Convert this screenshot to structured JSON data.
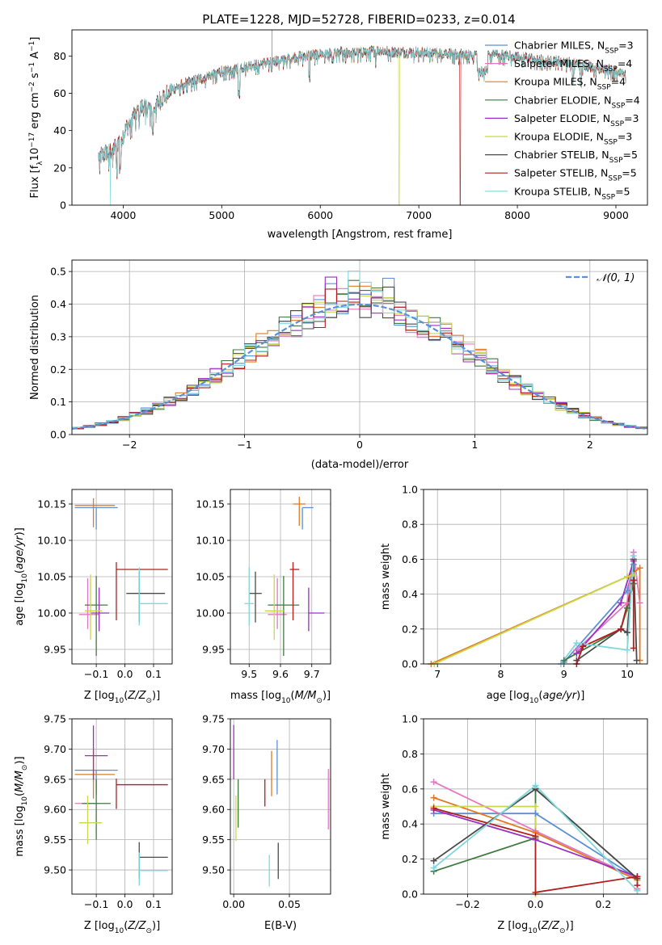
{
  "figure_title": "PLATE=1228, MJD=52728, FIBERID=0233, z=0.014",
  "colors": {
    "Chabrier MILES": "#5b8fd6",
    "Salpeter MILES": "#e377c2",
    "Kroupa MILES": "#e07b22",
    "Chabrier ELODIE": "#3e7a3e",
    "Salpeter ELODIE": "#9b30c0",
    "Kroupa ELODIE": "#c8d84a",
    "Chabrier STELIB": "#4a4a4a",
    "Salpeter STELIB": "#b21e1e",
    "Kroupa STELIB": "#7fd8dc"
  },
  "legend_labels": {
    "Chabrier MILES": "Chabrier MILES, N_SSP=3",
    "Salpeter MILES": "Salpeter MILES, N_SSP=4",
    "Kroupa MILES": "Kroupa MILES, N_SSP=4",
    "Chabrier ELODIE": "Chabrier ELODIE, N_SSP=4",
    "Salpeter ELODIE": "Salpeter ELODIE, N_SSP=3",
    "Kroupa ELODIE": "Kroupa ELODIE, N_SSP=3",
    "Chabrier STELIB": "Chabrier STELIB, N_SSP=5",
    "Salpeter STELIB": "Salpeter STELIB, N_SSP=5",
    "Kroupa STELIB": "Kroupa STELIB, N_SSP=5"
  },
  "chart_data": [
    {
      "id": "spectrum",
      "type": "line",
      "title": "PLATE=1228, MJD=52728, FIBERID=0233, z=0.014",
      "xlabel": "wavelength [Angstrom, rest frame]",
      "ylabel": "Flux [f_λ 10^-17 erg cm^-2 s^-1 A^-1]",
      "xlim": [
        3480,
        9320
      ],
      "ylim": [
        0,
        94
      ],
      "xticks": [
        4000,
        5000,
        6000,
        7000,
        8000,
        9000
      ],
      "yticks": [
        0,
        20,
        40,
        60,
        80
      ],
      "legend": "top-right",
      "grid": false,
      "continuum": {
        "x": [
          3750,
          3800,
          3900,
          4000,
          4100,
          4200,
          4300,
          4400,
          4500,
          4600,
          4800,
          5000,
          5200,
          5400,
          5600,
          5800,
          6000,
          6200,
          6400,
          6600,
          6800,
          7000,
          7200,
          7400,
          7600,
          7800,
          8000,
          8200,
          8400,
          8600,
          8800,
          9000,
          9100
        ],
        "y": [
          26,
          27,
          30,
          38,
          48,
          53,
          52,
          58,
          62,
          65,
          68,
          72,
          74,
          76,
          78,
          80,
          81,
          82,
          82,
          83,
          82,
          82,
          82,
          81,
          81,
          81,
          80,
          78,
          78,
          76,
          74,
          72,
          71
        ]
      },
      "drops": [
        {
          "series": "Kroupa ELODIE",
          "x": 6800
        },
        {
          "series": "Salpeter STELIB",
          "x": 7420
        },
        {
          "series": "Kroupa STELIB",
          "x": 3870
        }
      ]
    },
    {
      "id": "residuals",
      "type": "step-histogram",
      "xlabel": "(data-model)/error",
      "ylabel": "Normed distribution",
      "xlim": [
        -2.5,
        2.5
      ],
      "ylim": [
        0,
        0.535
      ],
      "xticks": [
        -2,
        -1,
        0,
        1,
        2
      ],
      "yticks": [
        0.0,
        0.1,
        0.2,
        0.3,
        0.4,
        0.5
      ],
      "grid": true,
      "legend": "top-right",
      "normal_label": "𝒩(0, 1)",
      "normal_color": "#5b8fd6",
      "bin_width": 0.1
    },
    {
      "id": "age_vs_Z",
      "type": "errorbar",
      "xlabel": "Z [log10(Z/Z⊙)]",
      "ylabel": "age [log10(age/yr)]",
      "xlim": [
        -0.185,
        0.165
      ],
      "ylim": [
        9.93,
        10.17
      ],
      "xticks": [
        -0.1,
        0.0,
        0.1
      ],
      "yticks": [
        9.95,
        10.0,
        10.05,
        10.1,
        10.15
      ],
      "grid": true,
      "points": [
        {
          "series": "Chabrier MILES",
          "x": -0.1,
          "xerr": [
            0.075,
            0.075
          ],
          "y": 10.145,
          "yerr": [
            0.03,
            0.0
          ]
        },
        {
          "series": "Kroupa MILES",
          "x": -0.11,
          "xerr": [
            0.065,
            0.075
          ],
          "y": 10.148,
          "yerr": [
            0.03,
            0.01
          ]
        },
        {
          "series": "Salpeter MILES",
          "x": -0.13,
          "xerr": [
            0.03,
            0.04
          ],
          "y": 9.998,
          "yerr": [
            0.02,
            0.05
          ]
        },
        {
          "series": "Chabrier ELODIE",
          "x": -0.1,
          "xerr": [
            0.04,
            0.04
          ],
          "y": 10.011,
          "yerr": [
            0.07,
            0.04
          ]
        },
        {
          "series": "Salpeter ELODIE",
          "x": -0.09,
          "xerr": [
            0.03,
            0.035
          ],
          "y": 10.0,
          "yerr": [
            0.025,
            0.035
          ]
        },
        {
          "series": "Kroupa ELODIE",
          "x": -0.12,
          "xerr": [
            0.02,
            0.04
          ],
          "y": 10.003,
          "yerr": [
            0.04,
            0.05
          ]
        },
        {
          "series": "Chabrier STELIB",
          "x": 0.05,
          "xerr": [
            0.045,
            0.09
          ],
          "y": 10.027,
          "yerr": [
            0.04,
            0.03
          ]
        },
        {
          "series": "Salpeter STELIB",
          "x": -0.03,
          "xerr": [
            0.0,
            0.18
          ],
          "y": 10.06,
          "yerr": [
            0.07,
            0.01
          ]
        },
        {
          "series": "Kroupa STELIB",
          "x": 0.05,
          "xerr": [
            0.0,
            0.1
          ],
          "y": 10.013,
          "yerr": [
            0.03,
            0.05
          ]
        }
      ]
    },
    {
      "id": "age_vs_mass",
      "type": "errorbar",
      "xlabel": "mass [log10(M/M⊙)]",
      "ylabel": "",
      "xlim": [
        9.44,
        9.76
      ],
      "ylim": [
        9.93,
        10.17
      ],
      "xticks": [
        9.5,
        9.6,
        9.7
      ],
      "yticks": [
        9.95,
        10.0,
        10.05,
        10.1,
        10.15
      ],
      "grid": true,
      "points": [
        {
          "series": "Chabrier MILES",
          "x": 9.67,
          "xerr": [
            0.0,
            0.035
          ],
          "y": 10.145,
          "yerr": [
            0.03,
            0.0
          ]
        },
        {
          "series": "Kroupa MILES",
          "x": 9.66,
          "xerr": [
            0.02,
            0.02
          ],
          "y": 10.15,
          "yerr": [
            0.03,
            0.01
          ]
        },
        {
          "series": "Salpeter MILES",
          "x": 9.59,
          "xerr": [
            0.03,
            0.03
          ],
          "y": 9.998,
          "yerr": [
            0.02,
            0.05
          ]
        },
        {
          "series": "Chabrier ELODIE",
          "x": 9.61,
          "xerr": [
            0.05,
            0.05
          ],
          "y": 10.011,
          "yerr": [
            0.07,
            0.04
          ]
        },
        {
          "series": "Salpeter ELODIE",
          "x": 9.69,
          "xerr": [
            0.0,
            0.05
          ],
          "y": 10.0,
          "yerr": [
            0.025,
            0.035
          ]
        },
        {
          "series": "Kroupa ELODIE",
          "x": 9.58,
          "xerr": [
            0.03,
            0.03
          ],
          "y": 10.003,
          "yerr": [
            0.04,
            0.05
          ]
        },
        {
          "series": "Chabrier STELIB",
          "x": 9.52,
          "xerr": [
            0.02,
            0.02
          ],
          "y": 10.027,
          "yerr": [
            0.04,
            0.03
          ]
        },
        {
          "series": "Salpeter STELIB",
          "x": 9.64,
          "xerr": [
            0.01,
            0.02
          ],
          "y": 10.06,
          "yerr": [
            0.07,
            0.01
          ]
        },
        {
          "series": "Kroupa STELIB",
          "x": 9.5,
          "xerr": [
            0.015,
            0.015
          ],
          "y": 10.013,
          "yerr": [
            0.03,
            0.05
          ]
        }
      ]
    },
    {
      "id": "weight_vs_age",
      "type": "line",
      "xlabel": "age [log10(age/yr)]",
      "ylabel": "mass weight",
      "xlim": [
        6.78,
        10.32
      ],
      "ylim": [
        0,
        1
      ],
      "xticks": [
        7,
        8,
        9,
        10
      ],
      "yticks": [
        0.0,
        0.2,
        0.4,
        0.6,
        0.8,
        1.0
      ],
      "grid": true,
      "series": [
        {
          "name": "Chabrier MILES",
          "x": [
            9.0,
            10.0,
            10.1
          ],
          "y": [
            0.01,
            0.42,
            0.57
          ]
        },
        {
          "name": "Salpeter MILES",
          "x": [
            9.2,
            10.0,
            10.1,
            10.2
          ],
          "y": [
            0.08,
            0.35,
            0.64,
            0.35
          ]
        },
        {
          "name": "Kroupa MILES",
          "x": [
            6.9,
            10.0,
            10.2,
            10.2
          ],
          "y": [
            0.0,
            0.5,
            0.55,
            0.02
          ]
        },
        {
          "name": "Chabrier ELODIE",
          "x": [
            9.0,
            9.9,
            10.0,
            10.1
          ],
          "y": [
            0.02,
            0.2,
            0.32,
            0.46
          ]
        },
        {
          "name": "Salpeter ELODIE",
          "x": [
            9.2,
            9.9,
            10.1
          ],
          "y": [
            0.06,
            0.35,
            0.59
          ]
        },
        {
          "name": "Kroupa ELODIE",
          "x": [
            6.95,
            10.0,
            10.1
          ],
          "y": [
            0.0,
            0.5,
            0.51
          ]
        },
        {
          "name": "Chabrier STELIB",
          "x": [
            9.2,
            9.9,
            10.0,
            10.1,
            10.15
          ],
          "y": [
            0.02,
            0.2,
            0.18,
            0.6,
            0.02
          ]
        },
        {
          "name": "Salpeter STELIB",
          "x": [
            9.2,
            9.3,
            9.9,
            10.1,
            10.1
          ],
          "y": [
            0.0,
            0.1,
            0.2,
            0.48,
            0.09
          ]
        },
        {
          "name": "Kroupa STELIB",
          "x": [
            8.95,
            9.2,
            10.0,
            10.1
          ],
          "y": [
            0.0,
            0.12,
            0.08,
            0.62
          ]
        }
      ]
    },
    {
      "id": "mass_vs_Z",
      "type": "errorbar",
      "xlabel": "Z [log10(Z/Z⊙)]",
      "ylabel": "mass [log10(M/M⊙)]",
      "xlim": [
        -0.185,
        0.165
      ],
      "ylim": [
        9.46,
        9.75
      ],
      "xticks": [
        -0.1,
        0.0,
        0.1
      ],
      "yticks": [
        9.5,
        9.55,
        9.6,
        9.65,
        9.7,
        9.75
      ],
      "grid": true,
      "points": [
        {
          "series": "Chabrier MILES",
          "x": -0.1,
          "xerr": [
            0.075,
            0.075
          ],
          "y": 9.665,
          "yerr": [
            0.04,
            0.0
          ]
        },
        {
          "series": "Kroupa MILES",
          "x": -0.11,
          "xerr": [
            0.065,
            0.075
          ],
          "y": 9.658,
          "yerr": [
            0.04,
            0.04
          ]
        },
        {
          "series": "Salpeter MILES",
          "x": -0.13,
          "xerr": [
            0.045,
            0.035
          ],
          "y": 9.61,
          "yerr": [
            0.0,
            0.0
          ]
        },
        {
          "series": "Chabrier ELODIE",
          "x": -0.1,
          "xerr": [
            0.05,
            0.05
          ],
          "y": 9.61,
          "yerr": [
            0.06,
            0.04
          ]
        },
        {
          "series": "Salpeter ELODIE",
          "x": -0.11,
          "xerr": [
            0.03,
            0.05
          ],
          "y": 9.689,
          "yerr": [
            0.04,
            0.05
          ]
        },
        {
          "series": "Kroupa ELODIE",
          "x": -0.13,
          "xerr": [
            0.03,
            0.05
          ],
          "y": 9.578,
          "yerr": [
            0.035,
            0.045
          ]
        },
        {
          "series": "Chabrier STELIB",
          "x": 0.05,
          "xerr": [
            0.0,
            0.1
          ],
          "y": 9.521,
          "yerr": [
            0.035,
            0.025
          ]
        },
        {
          "series": "Salpeter STELIB",
          "x": -0.03,
          "xerr": [
            0.0,
            0.18
          ],
          "y": 9.641,
          "yerr": [
            0.04,
            0.01
          ]
        },
        {
          "series": "Kroupa STELIB",
          "x": 0.05,
          "xerr": [
            0.0,
            0.1
          ],
          "y": 9.499,
          "yerr": [
            0.025,
            0.03
          ]
        }
      ]
    },
    {
      "id": "mass_vs_EBV",
      "type": "errorbar",
      "xlabel": "E(B-V)",
      "ylabel": "",
      "xlim": [
        -0.003,
        0.087
      ],
      "ylim": [
        9.46,
        9.75
      ],
      "xticks": [
        0.0,
        0.05
      ],
      "yticks": [
        9.5,
        9.55,
        9.6,
        9.65,
        9.7,
        9.75
      ],
      "grid": true,
      "points": [
        {
          "series": "Chabrier MILES",
          "x": 0.039,
          "xerr": [
            0,
            0
          ],
          "y": 9.67,
          "yerr": [
            0.045,
            0.045
          ]
        },
        {
          "series": "Kroupa MILES",
          "x": 0.034,
          "xerr": [
            0,
            0
          ],
          "y": 9.657,
          "yerr": [
            0.035,
            0.04
          ]
        },
        {
          "series": "Salpeter MILES",
          "x": 0.085,
          "xerr": [
            0,
            0
          ],
          "y": 9.617,
          "yerr": [
            0.05,
            0.05
          ]
        },
        {
          "series": "Chabrier ELODIE",
          "x": 0.004,
          "xerr": [
            0,
            0
          ],
          "y": 9.61,
          "yerr": [
            0.04,
            0.04
          ]
        },
        {
          "series": "Salpeter ELODIE",
          "x": 0.0,
          "xerr": [
            0,
            0
          ],
          "y": 9.69,
          "yerr": [
            0.04,
            0.05
          ]
        },
        {
          "series": "Kroupa ELODIE",
          "x": 0.002,
          "xerr": [
            0,
            0
          ],
          "y": 9.578,
          "yerr": [
            0.03,
            0.045
          ]
        },
        {
          "series": "Chabrier STELIB",
          "x": 0.04,
          "xerr": [
            0,
            0
          ],
          "y": 9.515,
          "yerr": [
            0.03,
            0.03
          ]
        },
        {
          "series": "Salpeter STELIB",
          "x": 0.028,
          "xerr": [
            0,
            0
          ],
          "y": 9.63,
          "yerr": [
            0.025,
            0.02
          ]
        },
        {
          "series": "Kroupa STELIB",
          "x": 0.032,
          "xerr": [
            0,
            0
          ],
          "y": 9.499,
          "yerr": [
            0.026,
            0.026
          ]
        }
      ]
    },
    {
      "id": "weight_vs_Z",
      "type": "line",
      "xlabel": "Z [log10(Z/Z⊙)]",
      "ylabel": "mass weight",
      "xlim": [
        -0.33,
        0.33
      ],
      "ylim": [
        0,
        1
      ],
      "xticks": [
        -0.2,
        0.0,
        0.2
      ],
      "yticks": [
        0.0,
        0.2,
        0.4,
        0.6,
        0.8,
        1.0
      ],
      "grid": true,
      "series": [
        {
          "name": "Chabrier MILES",
          "x": [
            -0.3,
            0.0,
            0.3
          ],
          "y": [
            0.46,
            0.46,
            0.09
          ]
        },
        {
          "name": "Salpeter MILES",
          "x": [
            -0.3,
            0.0,
            0.3,
            0.3
          ],
          "y": [
            0.64,
            0.36,
            0.09,
            0.03
          ]
        },
        {
          "name": "Kroupa MILES",
          "x": [
            -0.3,
            0.0,
            0.3,
            0.3
          ],
          "y": [
            0.55,
            0.35,
            0.08,
            0.02
          ]
        },
        {
          "name": "Chabrier ELODIE",
          "x": [
            -0.3,
            0.0,
            0.0,
            0.3
          ],
          "y": [
            0.13,
            0.32,
            0.6,
            0.09
          ]
        },
        {
          "name": "Salpeter ELODIE",
          "x": [
            -0.3,
            0.0,
            0.3
          ],
          "y": [
            0.48,
            0.31,
            0.1
          ]
        },
        {
          "name": "Kroupa ELODIE",
          "x": [
            -0.3,
            0.0,
            0.0
          ],
          "y": [
            0.5,
            0.5,
            0.0
          ]
        },
        {
          "name": "Chabrier STELIB",
          "x": [
            -0.3,
            0.0,
            0.3
          ],
          "y": [
            0.19,
            0.6,
            0.09
          ]
        },
        {
          "name": "Salpeter STELIB",
          "x": [
            -0.3,
            0.0,
            0.0,
            0.3,
            0.3
          ],
          "y": [
            0.49,
            0.33,
            0.01,
            0.1,
            0.05
          ]
        },
        {
          "name": "Kroupa STELIB",
          "x": [
            -0.3,
            0.0,
            0.3
          ],
          "y": [
            0.15,
            0.62,
            0.02
          ]
        }
      ]
    }
  ]
}
